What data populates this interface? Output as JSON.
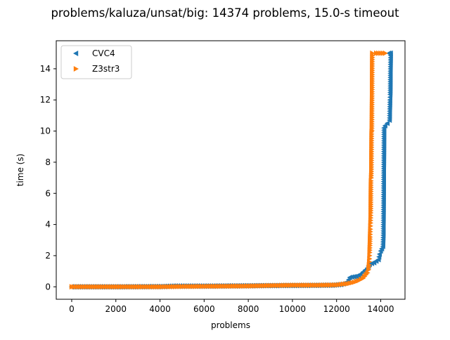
{
  "chart_data": {
    "type": "scatter",
    "title": "problems/kaluza/unsat/big: 14374 problems, 15.0-s timeout",
    "xlabel": "problems",
    "ylabel": "time (s)",
    "xlim": [
      -700,
      15100
    ],
    "ylim": [
      -0.8,
      15.8
    ],
    "xticks": [
      0,
      2000,
      4000,
      6000,
      8000,
      10000,
      12000,
      14000
    ],
    "yticks": [
      0,
      2,
      4,
      6,
      8,
      10,
      12,
      14
    ],
    "grid": false,
    "legend_position": "upper-left",
    "series": [
      {
        "name": "CVC4",
        "marker": "triangle-left",
        "color": "#1f77b4",
        "points": [
          [
            0,
            0.0
          ],
          [
            2000,
            0.0
          ],
          [
            4000,
            0.02
          ],
          [
            4600,
            0.05
          ],
          [
            6000,
            0.05
          ],
          [
            8000,
            0.07
          ],
          [
            10000,
            0.08
          ],
          [
            11800,
            0.1
          ],
          [
            12200,
            0.15
          ],
          [
            12500,
            0.3
          ],
          [
            12600,
            0.6
          ],
          [
            12800,
            0.65
          ],
          [
            13000,
            0.7
          ],
          [
            13200,
            0.95
          ],
          [
            13400,
            1.2
          ],
          [
            13500,
            1.45
          ],
          [
            13700,
            1.55
          ],
          [
            13900,
            1.75
          ],
          [
            13950,
            2.1
          ],
          [
            14000,
            2.3
          ],
          [
            14050,
            2.45
          ],
          [
            14100,
            2.6
          ],
          [
            14120,
            3.45
          ],
          [
            14150,
            10.2
          ],
          [
            14200,
            10.35
          ],
          [
            14300,
            10.5
          ],
          [
            14400,
            10.7
          ],
          [
            14420,
            12.0
          ],
          [
            14430,
            12.35
          ],
          [
            14440,
            13.85
          ],
          [
            14450,
            15.0
          ],
          [
            14374,
            15.0
          ]
        ]
      },
      {
        "name": "Z3str3",
        "marker": "triangle-right",
        "color": "#ff7f0e",
        "points": [
          [
            0,
            0.0
          ],
          [
            1000,
            0.0
          ],
          [
            2000,
            0.0
          ],
          [
            3000,
            0.0
          ],
          [
            4000,
            0.0
          ],
          [
            5000,
            0.02
          ],
          [
            6000,
            0.03
          ],
          [
            7000,
            0.04
          ],
          [
            8000,
            0.05
          ],
          [
            9000,
            0.08
          ],
          [
            10000,
            0.1
          ],
          [
            11000,
            0.1
          ],
          [
            12000,
            0.12
          ],
          [
            12500,
            0.2
          ],
          [
            12800,
            0.3
          ],
          [
            13000,
            0.4
          ],
          [
            13200,
            0.55
          ],
          [
            13400,
            0.9
          ],
          [
            13450,
            1.1
          ],
          [
            13470,
            1.4
          ],
          [
            13490,
            1.8
          ],
          [
            13500,
            2.2
          ],
          [
            13510,
            2.65
          ],
          [
            13520,
            3.2
          ],
          [
            13530,
            3.7
          ],
          [
            13540,
            4.1
          ],
          [
            13550,
            4.75
          ],
          [
            13560,
            6.8
          ],
          [
            13570,
            7.0
          ],
          [
            13580,
            7.55
          ],
          [
            13590,
            9.95
          ],
          [
            13600,
            10.05
          ],
          [
            13620,
            15.0
          ],
          [
            13800,
            15.0
          ],
          [
            14000,
            15.0
          ],
          [
            14200,
            15.0
          ]
        ]
      }
    ]
  }
}
